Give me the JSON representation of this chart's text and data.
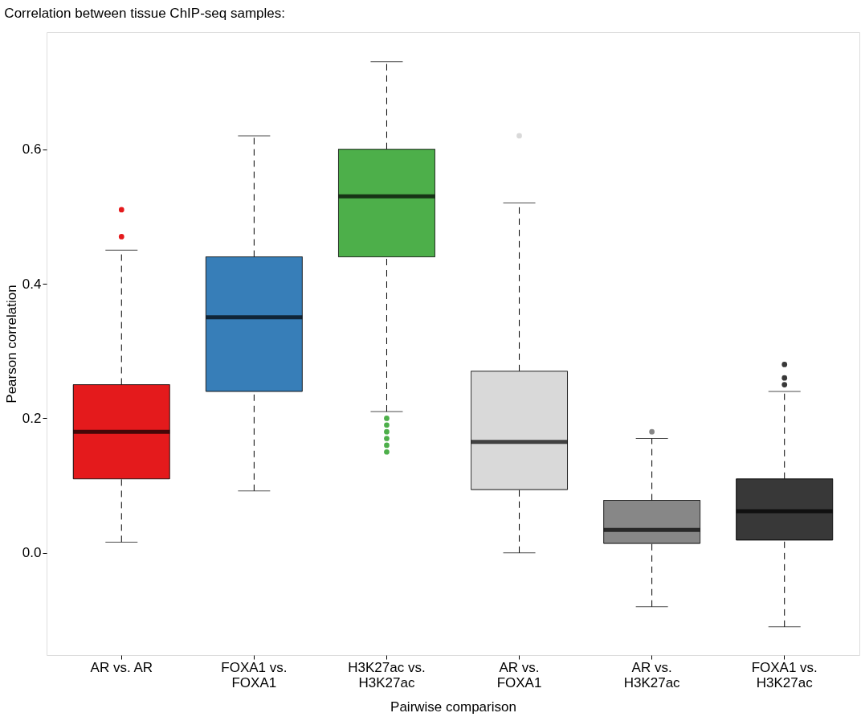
{
  "chart_data": {
    "type": "box",
    "title": "Correlation between tissue ChIP-seq samples:",
    "xlabel": "Pairwise comparison",
    "ylabel": "Pearson correlation",
    "categories": [
      "AR vs. AR",
      "FOXA1 vs. FOXA1",
      "H3K27ac vs. H3K27ac",
      "AR vs. FOXA1",
      "AR vs. H3K27ac",
      "FOXA1 vs. H3K27ac"
    ],
    "colors": [
      "#e41a1c",
      "#377eb8",
      "#4daf4a",
      "#d9d9d9",
      "#878787",
      "#383838"
    ],
    "boxes": [
      {
        "low": 0.016,
        "q1": 0.11,
        "median": 0.18,
        "q3": 0.25,
        "high": 0.45,
        "outliers": [
          0.47,
          0.51
        ]
      },
      {
        "low": 0.092,
        "q1": 0.24,
        "median": 0.35,
        "q3": 0.44,
        "high": 0.62
      },
      {
        "low": 0.21,
        "q1": 0.44,
        "median": 0.53,
        "q3": 0.6,
        "high": 0.73,
        "outliers": [
          0.2,
          0.19,
          0.18,
          0.17,
          0.16,
          0.15
        ]
      },
      {
        "low": 0.0,
        "q1": 0.094,
        "median": 0.165,
        "q3": 0.27,
        "high": 0.52,
        "outliers": [
          0.62
        ]
      },
      {
        "low": -0.08,
        "q1": 0.014,
        "median": 0.034,
        "q3": 0.078,
        "high": 0.17,
        "outliers": [
          0.18
        ]
      },
      {
        "low": -0.11,
        "q1": 0.019,
        "median": 0.062,
        "q3": 0.11,
        "high": 0.24,
        "outliers": [
          0.25,
          0.26,
          0.28
        ]
      }
    ],
    "ylim": [
      -0.152,
      0.774
    ],
    "yticks": [
      {
        "value": 0,
        "label": "0.0"
      },
      {
        "value": 0.2,
        "label": "0.2"
      },
      {
        "value": 0.4,
        "label": "0.4"
      },
      {
        "value": 0.6,
        "label": "0.6"
      }
    ],
    "grid": false
  }
}
